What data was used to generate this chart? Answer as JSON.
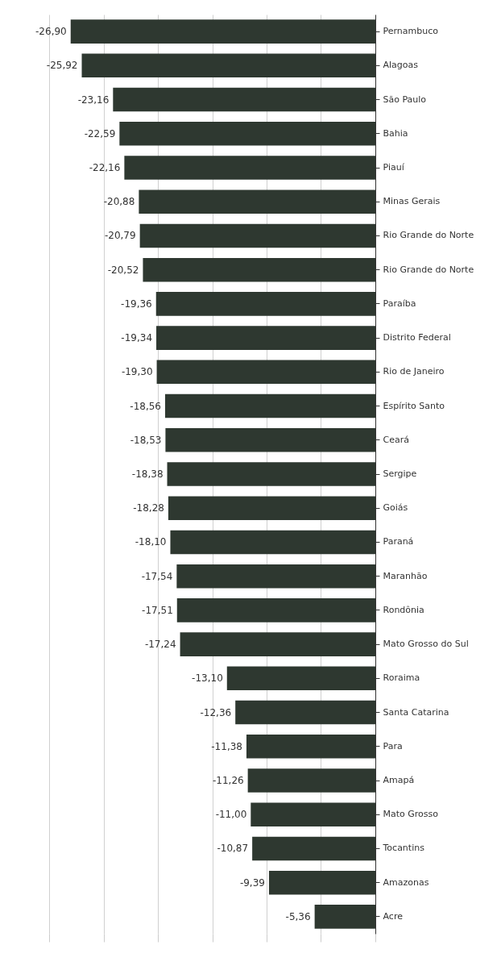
{
  "chart_data": {
    "type": "bar",
    "orientation": "horizontal",
    "categories": [
      "Pernambuco",
      "Alagoas",
      "São Paulo",
      "Bahia",
      "Piauí",
      "Minas Gerais",
      "Rio Grande do Norte",
      "Rio Grande do Norte",
      "Paraíba",
      "Distrito Federal",
      "Rio de Janeiro",
      "Espírito Santo",
      "Ceará",
      "Sergipe",
      "Goiás",
      "Paraná",
      "Maranhão",
      "Rondônia",
      "Mato Grosso do Sul",
      "Roraima",
      "Santa Catarina",
      "Para",
      "Amapá",
      "Mato Grosso",
      "Tocantins",
      "Amazonas",
      "Acre"
    ],
    "values": [
      -26.9,
      -25.92,
      -23.16,
      -22.59,
      -22.16,
      -20.88,
      -20.79,
      -20.52,
      -19.36,
      -19.34,
      -19.3,
      -18.56,
      -18.53,
      -18.38,
      -18.28,
      -18.1,
      -17.54,
      -17.51,
      -17.24,
      -13.1,
      -12.36,
      -11.38,
      -11.26,
      -11.0,
      -10.87,
      -9.39,
      -5.36
    ],
    "value_labels": [
      "-26,90",
      "-25,92",
      "-23,16",
      "-22,59",
      "-22,16",
      "-20,88",
      "-20,79",
      "-20,52",
      "-19,36",
      "-19,34",
      "-19,30",
      "-18,56",
      "-18,53",
      "-18,38",
      "-18,28",
      "-18,10",
      "-17,54",
      "-17,51",
      "-17,24",
      "-13,10",
      "-12,36",
      "-11,38",
      "-11,26",
      "-11,00",
      "-10,87",
      "-9,39",
      "-5,36"
    ],
    "color": "#2e3830",
    "xlim": [
      -28.8,
      0
    ],
    "xticks": [
      {
        "value": -28.8,
        "label": null
      },
      {
        "value": -24,
        "label": null
      },
      {
        "value": -19.2,
        "label": null
      },
      {
        "value": -14.4,
        "label": null
      },
      {
        "value": -9.6,
        "label": null
      },
      {
        "value": -4.8,
        "label": null
      },
      {
        "value": 0,
        "label": null
      }
    ],
    "grid": "x",
    "tick_labels": "y"
  }
}
